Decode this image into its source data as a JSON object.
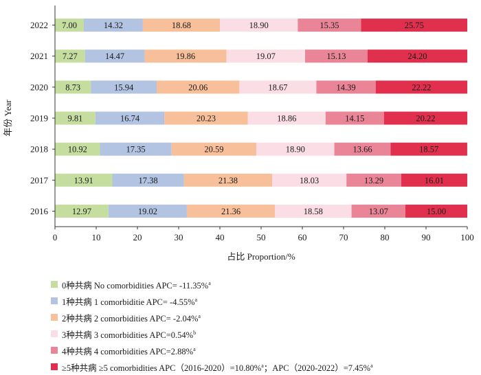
{
  "chart_data": {
    "type": "bar",
    "orientation": "horizontal",
    "stacked": true,
    "categories": [
      "2022",
      "2021",
      "2020",
      "2019",
      "2018",
      "2017",
      "2016"
    ],
    "series": [
      {
        "name": "0种共病 No comorbidities APC= -11.35%",
        "sup": "a",
        "color": "#c5dea0",
        "values": [
          7.0,
          7.27,
          8.73,
          9.81,
          10.92,
          13.91,
          12.97
        ],
        "labels": [
          "7.00",
          "7.27",
          "8.73",
          "9.81",
          "10.92",
          "13.91",
          "12.97"
        ]
      },
      {
        "name": "1种共病 1 comorbiditie APC= -4.55%",
        "sup": "a",
        "color": "#b3c3e2",
        "values": [
          14.32,
          14.47,
          15.94,
          16.74,
          17.35,
          17.38,
          19.02
        ],
        "labels": [
          "14.32",
          "14.47",
          "15.94",
          "16.74",
          "17.35",
          "17.38",
          "19.02"
        ]
      },
      {
        "name": "2种共病 2 comorbidities APC= -2.04%",
        "sup": "a",
        "color": "#f7c09a",
        "values": [
          18.68,
          19.86,
          20.06,
          20.23,
          20.59,
          21.38,
          21.36
        ],
        "labels": [
          "18.68",
          "19.86",
          "20.06",
          "20.23",
          "20.59",
          "21.38",
          "21.36"
        ]
      },
      {
        "name": "3种共病 3 comorbidities APC=0.54%",
        "sup": "b",
        "color": "#fbdde6",
        "values": [
          18.9,
          19.07,
          18.67,
          18.86,
          18.9,
          18.03,
          18.58
        ],
        "labels": [
          "18.90",
          "19.07",
          "18.67",
          "18.86",
          "18.90",
          "18.03",
          "18.58"
        ]
      },
      {
        "name": "4种共病 4 comorbidities APC=2.88%",
        "sup": "a",
        "color": "#e98597",
        "values": [
          15.35,
          15.13,
          14.39,
          14.15,
          13.66,
          13.29,
          13.07
        ],
        "labels": [
          "15.35",
          "15.13",
          "14.39",
          "14.15",
          "13.66",
          "13.29",
          "13.07"
        ]
      },
      {
        "name": "≥5种共病 ≥5 comorbidities APC（2016-2020）=10.80%",
        "sup": "a",
        "name_tail": "；APC（2020-2022）=7.45%",
        "sup_tail": "a",
        "color": "#e0304e",
        "values": [
          25.75,
          24.2,
          22.22,
          20.22,
          18.57,
          16.01,
          15.0
        ],
        "labels": [
          "25.75",
          "24.20",
          "22.22",
          "20.22",
          "18.57",
          "16.01",
          "15.00"
        ]
      }
    ],
    "xlabel": "占比 Proportion/%",
    "ylabel": "年份 Year",
    "xlim": [
      0,
      100
    ],
    "xticks": [
      "0",
      "10",
      "20",
      "30",
      "40",
      "50",
      "60",
      "70",
      "80",
      "90",
      "100"
    ],
    "grid": false,
    "legend_position": "bottom"
  }
}
